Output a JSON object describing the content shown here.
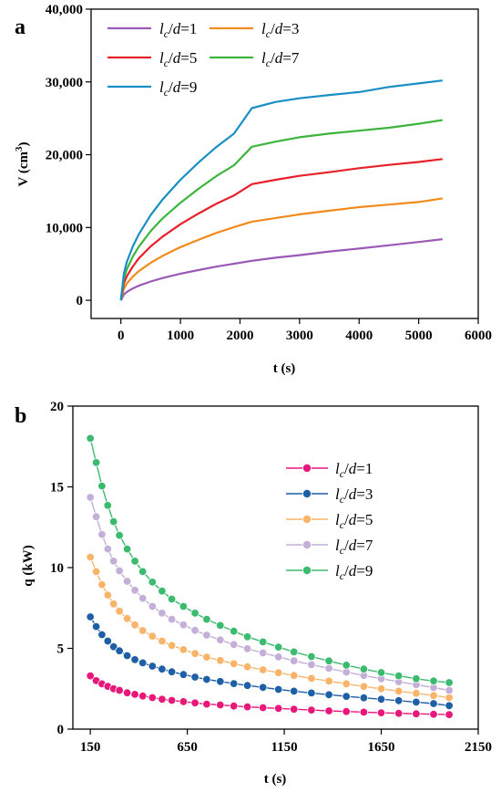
{
  "chart_data": [
    {
      "type": "line",
      "panel_label": "a",
      "xlabel": "t (s)",
      "ylabel_main": "V (cm",
      "ylabel_sup": "3",
      "ylabel_close": ")",
      "xlim": [
        -500,
        6000
      ],
      "ylim": [
        -2500,
        40000
      ],
      "xticks": [
        0,
        1000,
        2000,
        3000,
        4000,
        5000,
        6000
      ],
      "xtick_labels": [
        "0",
        "1000",
        "2000",
        "3000",
        "4000",
        "5000",
        "6000"
      ],
      "yticks": [
        0,
        10000,
        20000,
        30000,
        40000
      ],
      "ytick_labels": [
        "0",
        "10,000",
        "20,000",
        "30,000",
        "40,000"
      ],
      "legend_position": "top-left",
      "x": [
        0,
        50,
        100,
        200,
        300,
        500,
        700,
        1000,
        1300,
        1600,
        1900,
        2200,
        2600,
        3000,
        3500,
        4000,
        4500,
        5000,
        5400
      ],
      "series": [
        {
          "legend_pre": "l",
          "legend_sub": "c",
          "legend_mid": "/",
          "legend_it": "d",
          "legend_post": "=1",
          "color": "#9b59b6",
          "values": [
            0,
            800,
            1150,
            1630,
            2000,
            2580,
            3050,
            3650,
            4150,
            4620,
            5020,
            5420,
            5850,
            6200,
            6700,
            7100,
            7550,
            8000,
            8400
          ]
        },
        {
          "legend_pre": "l",
          "legend_sub": "c",
          "legend_mid": "/",
          "legend_it": "d",
          "legend_post": "=3",
          "color": "#f28a1c",
          "values": [
            0,
            1600,
            2300,
            3250,
            4000,
            5150,
            6100,
            7300,
            8300,
            9250,
            10050,
            10800,
            11300,
            11800,
            12300,
            12800,
            13150,
            13500,
            14000
          ]
        },
        {
          "legend_pre": "l",
          "legend_sub": "c",
          "legend_mid": "/",
          "legend_it": "d",
          "legend_post": "=5",
          "color": "#e8202a",
          "values": [
            0,
            2300,
            3300,
            4650,
            5750,
            7400,
            8750,
            10450,
            11900,
            13250,
            14400,
            15950,
            16550,
            17100,
            17600,
            18150,
            18600,
            19000,
            19400
          ]
        },
        {
          "legend_pre": "l",
          "legend_sub": "c",
          "legend_mid": "/",
          "legend_it": "d",
          "legend_post": "=7",
          "color": "#3cb53c",
          "values": [
            0,
            3000,
            4250,
            6000,
            7350,
            9500,
            11250,
            13400,
            15300,
            17050,
            18550,
            21100,
            21800,
            22400,
            22900,
            23300,
            23700,
            24250,
            24750
          ]
        },
        {
          "legend_pre": "l",
          "legend_sub": "c",
          "legend_mid": "/",
          "legend_it": "d",
          "legend_post": "=9",
          "color": "#1a8fc4",
          "values": [
            0,
            3700,
            5250,
            7400,
            9050,
            11700,
            13850,
            16550,
            18900,
            21050,
            22900,
            26400,
            27250,
            27750,
            28200,
            28600,
            29300,
            29800,
            30200
          ]
        }
      ]
    },
    {
      "type": "line",
      "panel_label": "b",
      "xlabel": "t (s)",
      "ylabel": "q (kW)",
      "xlim": [
        60,
        2150
      ],
      "ylim": [
        0,
        20
      ],
      "xticks": [
        150,
        650,
        1150,
        1650,
        2150
      ],
      "xtick_labels": [
        "150",
        "650",
        "1150",
        "1650",
        "2150"
      ],
      "yticks": [
        0,
        5,
        10,
        15,
        20
      ],
      "ytick_labels": [
        "0",
        "5",
        "10",
        "15",
        "20"
      ],
      "legend_position": "top-right",
      "x": [
        150,
        180,
        210,
        240,
        270,
        300,
        340,
        380,
        420,
        470,
        520,
        570,
        630,
        690,
        750,
        820,
        890,
        960,
        1040,
        1120,
        1200,
        1290,
        1380,
        1470,
        1560,
        1650,
        1740,
        1830,
        1920,
        2000
      ],
      "series": [
        {
          "legend_pre": "l",
          "legend_sub": "c",
          "legend_mid": "/",
          "legend_it": "d",
          "legend_post": "=1",
          "color": "#e8177a",
          "values": [
            3.3,
            3.0,
            2.8,
            2.65,
            2.5,
            2.4,
            2.25,
            2.15,
            2.05,
            1.95,
            1.85,
            1.78,
            1.7,
            1.62,
            1.55,
            1.5,
            1.43,
            1.38,
            1.33,
            1.28,
            1.23,
            1.18,
            1.13,
            1.09,
            1.05,
            1.01,
            0.98,
            0.95,
            0.92,
            0.9
          ]
        },
        {
          "legend_pre": "l",
          "legend_sub": "c",
          "legend_mid": "/",
          "legend_it": "d",
          "legend_post": "=3",
          "color": "#1f5fa5",
          "values": [
            6.95,
            6.35,
            5.85,
            5.45,
            5.1,
            4.85,
            4.55,
            4.3,
            4.1,
            3.9,
            3.72,
            3.55,
            3.38,
            3.22,
            3.08,
            2.95,
            2.82,
            2.7,
            2.58,
            2.46,
            2.35,
            2.24,
            2.13,
            2.03,
            1.94,
            1.85,
            1.76,
            1.67,
            1.58,
            1.45
          ]
        },
        {
          "legend_pre": "l",
          "legend_sub": "c",
          "legend_mid": "/",
          "legend_it": "d",
          "legend_post": "=5",
          "color": "#f8b56a",
          "values": [
            10.65,
            9.75,
            8.95,
            8.3,
            7.75,
            7.3,
            6.85,
            6.45,
            6.1,
            5.75,
            5.45,
            5.18,
            4.92,
            4.68,
            4.46,
            4.25,
            4.05,
            3.86,
            3.67,
            3.49,
            3.32,
            3.14,
            2.97,
            2.8,
            2.64,
            2.5,
            2.35,
            2.22,
            2.08,
            1.95
          ]
        },
        {
          "legend_pre": "l",
          "legend_sub": "c",
          "legend_mid": "/",
          "legend_it": "d",
          "legend_post": "=7",
          "color": "#c4afd8",
          "values": [
            14.35,
            13.15,
            12.05,
            11.15,
            10.4,
            9.8,
            9.15,
            8.6,
            8.1,
            7.6,
            7.18,
            6.8,
            6.45,
            6.12,
            5.82,
            5.52,
            5.24,
            4.98,
            4.72,
            4.47,
            4.23,
            3.99,
            3.76,
            3.53,
            3.32,
            3.12,
            2.93,
            2.75,
            2.57,
            2.4
          ]
        },
        {
          "legend_pre": "l",
          "legend_sub": "c",
          "legend_mid": "/",
          "legend_it": "d",
          "legend_post": "=9",
          "color": "#3cba6e",
          "values": [
            18.0,
            16.5,
            15.05,
            13.85,
            12.85,
            12.0,
            11.15,
            10.4,
            9.75,
            9.1,
            8.55,
            8.05,
            7.6,
            7.18,
            6.8,
            6.42,
            6.06,
            5.72,
            5.4,
            5.08,
            4.78,
            4.49,
            4.22,
            3.96,
            3.72,
            3.5,
            3.3,
            3.12,
            2.98,
            2.88
          ]
        }
      ]
    }
  ]
}
